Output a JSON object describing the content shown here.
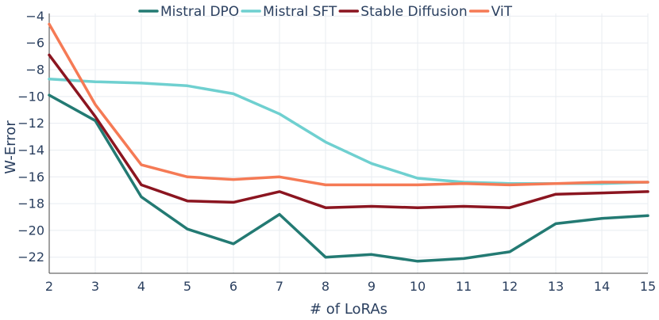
{
  "chart_data": {
    "type": "line",
    "title": "",
    "xlabel": "# of LoRAs",
    "ylabel": "W-Error",
    "x": [
      2,
      3,
      4,
      5,
      6,
      7,
      8,
      9,
      10,
      11,
      12,
      13,
      14,
      15
    ],
    "xlim": [
      2,
      15
    ],
    "ylim": [
      -23.2,
      -3.8
    ],
    "yticks": [
      -4,
      -6,
      -8,
      -10,
      -12,
      -14,
      -16,
      -18,
      -20,
      -22
    ],
    "ytick_labels": [
      "−4",
      "−6",
      "−8",
      "−10",
      "−12",
      "−14",
      "−16",
      "−18",
      "−20",
      "−22"
    ],
    "xticks": [
      2,
      3,
      4,
      5,
      6,
      7,
      8,
      9,
      10,
      11,
      12,
      13,
      14,
      15
    ],
    "xtick_labels": [
      "2",
      "3",
      "4",
      "5",
      "6",
      "7",
      "8",
      "9",
      "10",
      "11",
      "12",
      "13",
      "14",
      "15"
    ],
    "grid": true,
    "legend_position": "top",
    "series": [
      {
        "name": "Mistral DPO",
        "color": "#237a73",
        "values": [
          -9.9,
          -11.8,
          -17.5,
          -19.9,
          -21.0,
          -18.8,
          -22.0,
          -21.8,
          -22.3,
          -22.1,
          -21.6,
          -19.5,
          -19.1,
          -18.9
        ]
      },
      {
        "name": "Mistral SFT",
        "color": "#6fd0d0",
        "values": [
          -8.7,
          -8.9,
          -9.0,
          -9.2,
          -9.8,
          -11.3,
          -13.4,
          -15.0,
          -16.1,
          -16.4,
          -16.5,
          -16.5,
          -16.5,
          -16.4
        ]
      },
      {
        "name": "Stable Diffusion",
        "color": "#8b1520",
        "values": [
          -6.9,
          -11.5,
          -16.6,
          -17.8,
          -17.9,
          -17.1,
          -18.3,
          -18.2,
          -18.3,
          -18.2,
          -18.3,
          -17.3,
          -17.2,
          -17.1
        ]
      },
      {
        "name": "ViT",
        "color": "#f57a55",
        "values": [
          -4.6,
          -10.6,
          -15.1,
          -16.0,
          -16.2,
          -16.0,
          -16.6,
          -16.6,
          -16.6,
          -16.5,
          -16.6,
          -16.5,
          -16.4,
          -16.4
        ]
      }
    ]
  }
}
